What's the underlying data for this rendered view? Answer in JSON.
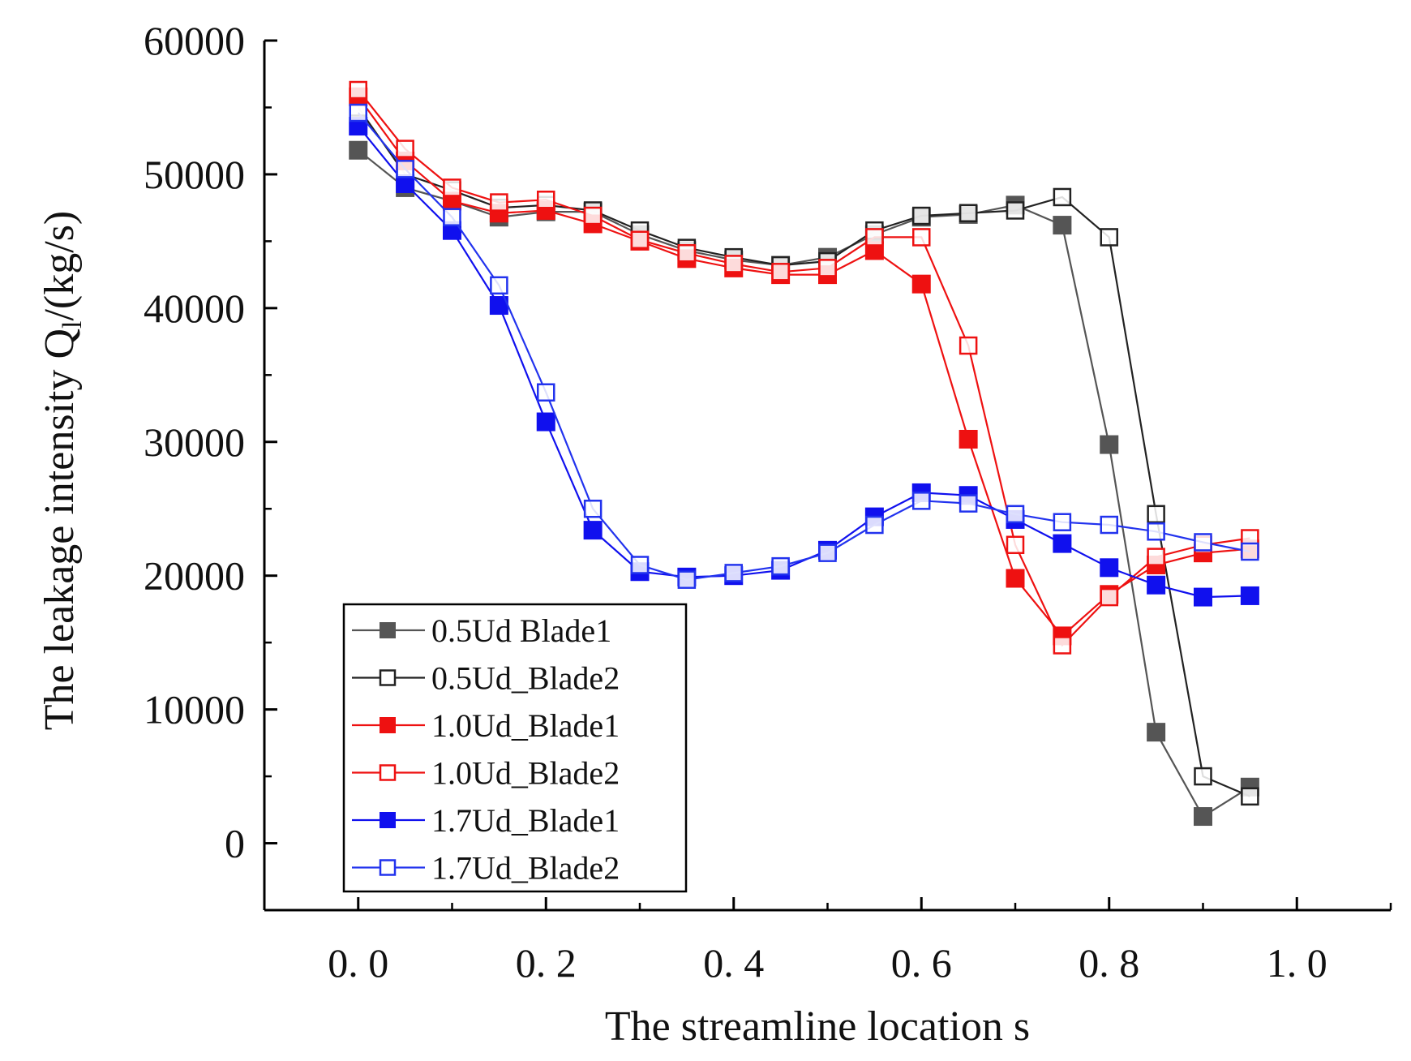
{
  "chart_data": {
    "type": "line",
    "title": "",
    "xlabel": "The streamline location s",
    "ylabel": "The leakage intensity Q",
    "ylabel_sub": "l",
    "ylabel_unit": "/(kg/s)",
    "xlim": [
      -0.1,
      1.1
    ],
    "ylim": [
      -5000,
      60000
    ],
    "x_ticks": [
      0.0,
      0.2,
      0.4,
      0.6,
      0.8,
      1.0
    ],
    "x_tick_labels": [
      "0. 0",
      "0. 2",
      "0. 4",
      "0. 6",
      "0. 8",
      "1. 0"
    ],
    "y_ticks": [
      0,
      10000,
      20000,
      30000,
      40000,
      50000,
      60000
    ],
    "y_tick_labels": [
      "0",
      "10000",
      "20000",
      "30000",
      "40000",
      "50000",
      "60000"
    ],
    "grid": false,
    "legend_position": "bottom-left",
    "x": [
      0.0,
      0.05,
      0.1,
      0.15,
      0.2,
      0.25,
      0.3,
      0.35,
      0.4,
      0.45,
      0.5,
      0.55,
      0.6,
      0.65,
      0.7,
      0.75,
      0.8,
      0.85,
      0.9,
      0.95
    ],
    "series": [
      {
        "name": "0.5Ud_Blade1",
        "legend_label": "0.5Ud  Blade1",
        "color": "#555555",
        "marker": "filled-square",
        "line_visible": true,
        "values": [
          51800,
          49000,
          48000,
          46800,
          47200,
          47200,
          45500,
          44300,
          43600,
          43200,
          43800,
          45500,
          46800,
          47000,
          47700,
          46200,
          29800,
          8300,
          2000,
          4200
        ]
      },
      {
        "name": "0.5Ud_Blade2",
        "legend_label": "0.5Ud_Blade2",
        "color": "#222222",
        "marker": "open-square",
        "line_visible": true,
        "values": [
          55000,
          50000,
          48800,
          47500,
          47700,
          47300,
          45800,
          44500,
          43800,
          43200,
          43500,
          45800,
          46900,
          47100,
          47300,
          48300,
          45300,
          24600,
          5000,
          3500
        ]
      },
      {
        "name": "1.0Ud_Blade1",
        "legend_label": "1.0Ud_Blade1",
        "color": "#ee1111",
        "marker": "filled-square",
        "line_visible": true,
        "values": [
          55800,
          51000,
          48000,
          47100,
          47300,
          46300,
          45000,
          43700,
          43000,
          42500,
          42500,
          44300,
          41800,
          30200,
          19800,
          15500,
          18600,
          20800,
          21700,
          22000
        ]
      },
      {
        "name": "1.0Ud_Blade2",
        "legend_label": "1.0Ud_Blade2",
        "color": "#ee1111",
        "marker": "open-square",
        "line_visible": true,
        "values": [
          56300,
          51900,
          49000,
          47900,
          48100,
          46900,
          45100,
          44100,
          43300,
          42700,
          43000,
          45300,
          45300,
          37200,
          22300,
          14800,
          18400,
          21400,
          22300,
          22800
        ]
      },
      {
        "name": "1.7Ud_Blade1",
        "legend_label": "1.7Ud_Blade1",
        "color": "#1010ee",
        "marker": "filled-square",
        "line_visible": true,
        "values": [
          53600,
          49300,
          45800,
          40200,
          31500,
          23400,
          20300,
          19900,
          20000,
          20400,
          21900,
          24400,
          26200,
          26000,
          24200,
          22400,
          20600,
          19300,
          18400,
          18500
        ]
      },
      {
        "name": "1.7Ud_Blade2",
        "legend_label": "1.7Ud_Blade2",
        "color": "#2233ee",
        "marker": "open-square",
        "line_visible": true,
        "values": [
          54600,
          50400,
          46800,
          41700,
          33700,
          25000,
          20800,
          19700,
          20200,
          20700,
          21700,
          23800,
          25600,
          25400,
          24600,
          24000,
          23800,
          23300,
          22500,
          21800
        ]
      }
    ]
  }
}
